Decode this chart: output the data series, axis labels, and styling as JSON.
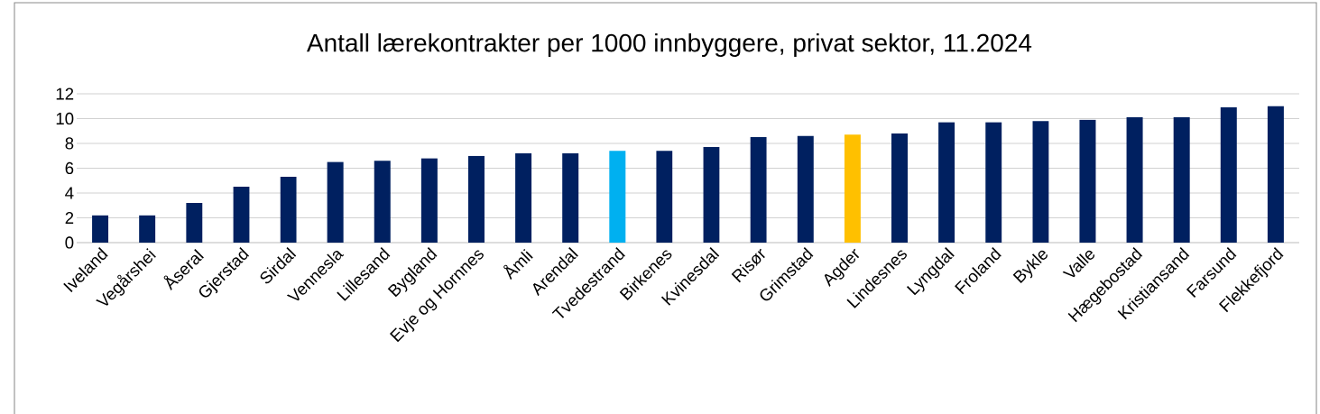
{
  "chart_data": {
    "type": "bar",
    "title": "Antall lærekontrakter per 1000 innbyggere, privat sektor, 11.2024",
    "categories": [
      "Iveland",
      "Vegårshei",
      "Åseral",
      "Gjerstad",
      "Sirdal",
      "Vennesla",
      "Lillesand",
      "Bygland",
      "Evje og Hornnes",
      "Åmli",
      "Arendal",
      "Tvedestrand",
      "Birkenes",
      "Kvinesdal",
      "Risør",
      "Grimstad",
      "Agder",
      "Lindesnes",
      "Lyngdal",
      "Froland",
      "Bykle",
      "Valle",
      "Hægebostad",
      "Kristiansand",
      "Farsund",
      "Flekkefjord"
    ],
    "values": [
      2.2,
      2.2,
      3.2,
      4.5,
      5.3,
      6.5,
      6.6,
      6.8,
      7.0,
      7.2,
      7.2,
      7.4,
      7.4,
      7.7,
      8.5,
      8.6,
      8.7,
      8.8,
      9.7,
      9.7,
      9.8,
      9.9,
      10.1,
      10.1,
      10.9,
      11.0
    ],
    "colors": [
      "#002060",
      "#002060",
      "#002060",
      "#002060",
      "#002060",
      "#002060",
      "#002060",
      "#002060",
      "#002060",
      "#002060",
      "#002060",
      "#00b0f0",
      "#002060",
      "#002060",
      "#002060",
      "#002060",
      "#ffc000",
      "#002060",
      "#002060",
      "#002060",
      "#002060",
      "#002060",
      "#002060",
      "#002060",
      "#002060",
      "#002060"
    ],
    "ylim": [
      0,
      12
    ],
    "yticks": [
      0,
      2,
      4,
      6,
      8,
      10,
      12
    ],
    "grid": "y"
  }
}
